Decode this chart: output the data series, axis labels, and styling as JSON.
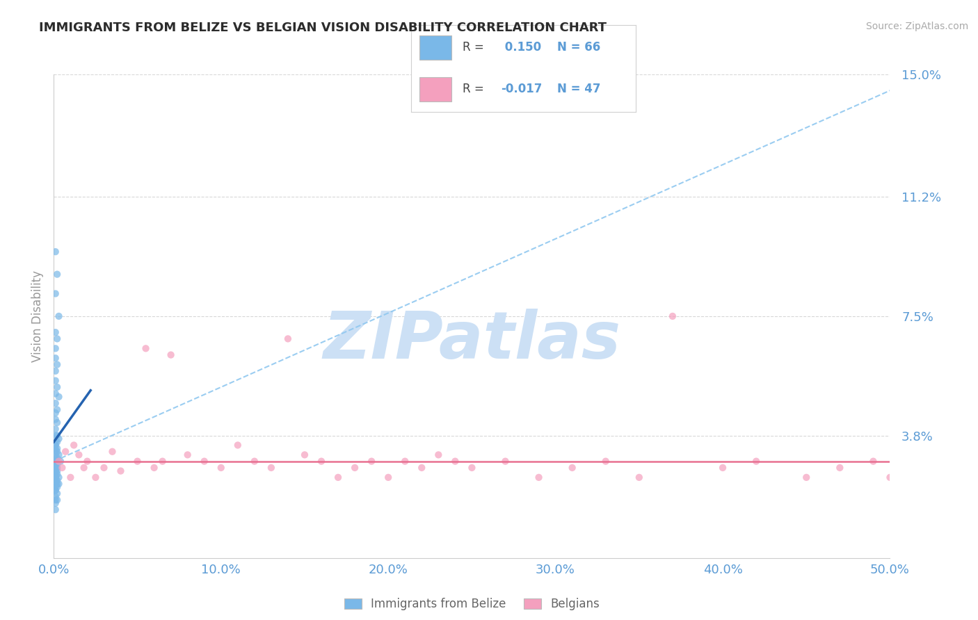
{
  "title": "IMMIGRANTS FROM BELIZE VS BELGIAN VISION DISABILITY CORRELATION CHART",
  "source": "Source: ZipAtlas.com",
  "xlabel_belize": "Immigrants from Belize",
  "xlabel_belgians": "Belgians",
  "ylabel": "Vision Disability",
  "x_min": 0.0,
  "x_max": 0.5,
  "y_min": 0.0,
  "y_max": 0.15,
  "y_ticks": [
    0.038,
    0.075,
    0.112,
    0.15
  ],
  "y_tick_labels": [
    "3.8%",
    "7.5%",
    "11.2%",
    "15.0%"
  ],
  "x_ticks": [
    0.0,
    0.1,
    0.2,
    0.3,
    0.4,
    0.5
  ],
  "x_tick_labels": [
    "0.0%",
    "10.0%",
    "20.0%",
    "30.0%",
    "40.0%",
    "50.0%"
  ],
  "R_belize": 0.15,
  "N_belize": 66,
  "R_belgians": -0.017,
  "N_belgians": 47,
  "color_belize": "#7ab8e8",
  "color_belgians": "#f4a0be",
  "trend_belize_solid_color": "#2563b0",
  "trend_belgians_color": "#e87090",
  "trend_dashed_color": "#90c8f0",
  "watermark_color": "#cce0f5",
  "title_color": "#2c2c2c",
  "axis_label_color": "#5b9bd5",
  "tick_label_color": "#5b9bd5",
  "background_color": "#ffffff",
  "grid_color": "#d8d8d8",
  "belize_scatter_x": [
    0.001,
    0.002,
    0.001,
    0.003,
    0.001,
    0.002,
    0.001,
    0.001,
    0.002,
    0.001,
    0.001,
    0.002,
    0.001,
    0.003,
    0.001,
    0.002,
    0.001,
    0.001,
    0.002,
    0.001,
    0.001,
    0.002,
    0.003,
    0.001,
    0.002,
    0.001,
    0.001,
    0.002,
    0.001,
    0.001,
    0.002,
    0.001,
    0.003,
    0.001,
    0.002,
    0.001,
    0.004,
    0.001,
    0.002,
    0.001,
    0.001,
    0.002,
    0.001,
    0.001,
    0.002,
    0.001,
    0.001,
    0.002,
    0.001,
    0.003,
    0.001,
    0.002,
    0.001,
    0.001,
    0.002,
    0.003,
    0.001,
    0.002,
    0.001,
    0.001,
    0.002,
    0.001,
    0.001,
    0.002,
    0.001,
    0.001
  ],
  "belize_scatter_y": [
    0.095,
    0.088,
    0.082,
    0.075,
    0.07,
    0.068,
    0.065,
    0.062,
    0.06,
    0.058,
    0.055,
    0.053,
    0.051,
    0.05,
    0.048,
    0.046,
    0.045,
    0.043,
    0.042,
    0.04,
    0.038,
    0.038,
    0.037,
    0.036,
    0.036,
    0.035,
    0.035,
    0.034,
    0.034,
    0.033,
    0.033,
    0.032,
    0.032,
    0.031,
    0.031,
    0.03,
    0.03,
    0.03,
    0.029,
    0.029,
    0.028,
    0.028,
    0.028,
    0.027,
    0.027,
    0.027,
    0.026,
    0.026,
    0.025,
    0.025,
    0.025,
    0.024,
    0.024,
    0.023,
    0.023,
    0.023,
    0.022,
    0.022,
    0.021,
    0.021,
    0.02,
    0.019,
    0.018,
    0.018,
    0.017,
    0.015
  ],
  "belgians_scatter_x": [
    0.003,
    0.005,
    0.007,
    0.01,
    0.012,
    0.015,
    0.018,
    0.02,
    0.025,
    0.03,
    0.035,
    0.04,
    0.05,
    0.055,
    0.06,
    0.065,
    0.07,
    0.08,
    0.09,
    0.1,
    0.11,
    0.12,
    0.13,
    0.14,
    0.15,
    0.16,
    0.17,
    0.18,
    0.19,
    0.2,
    0.21,
    0.22,
    0.23,
    0.24,
    0.25,
    0.27,
    0.29,
    0.31,
    0.33,
    0.35,
    0.37,
    0.4,
    0.42,
    0.45,
    0.47,
    0.49,
    0.5
  ],
  "belgians_scatter_y": [
    0.03,
    0.028,
    0.033,
    0.025,
    0.035,
    0.032,
    0.028,
    0.03,
    0.025,
    0.028,
    0.033,
    0.027,
    0.03,
    0.065,
    0.028,
    0.03,
    0.063,
    0.032,
    0.03,
    0.028,
    0.035,
    0.03,
    0.028,
    0.068,
    0.032,
    0.03,
    0.025,
    0.028,
    0.03,
    0.025,
    0.03,
    0.028,
    0.032,
    0.03,
    0.028,
    0.03,
    0.025,
    0.028,
    0.03,
    0.025,
    0.075,
    0.028,
    0.03,
    0.025,
    0.028,
    0.03,
    0.025
  ],
  "belize_trend_x0": 0.0,
  "belize_trend_y0": 0.036,
  "belize_trend_x1": 0.022,
  "belize_trend_y1": 0.052,
  "dashed_trend_x0": 0.0,
  "dashed_trend_y0": 0.03,
  "dashed_trend_x1": 0.5,
  "dashed_trend_y1": 0.145,
  "belgians_trend_y": 0.03
}
